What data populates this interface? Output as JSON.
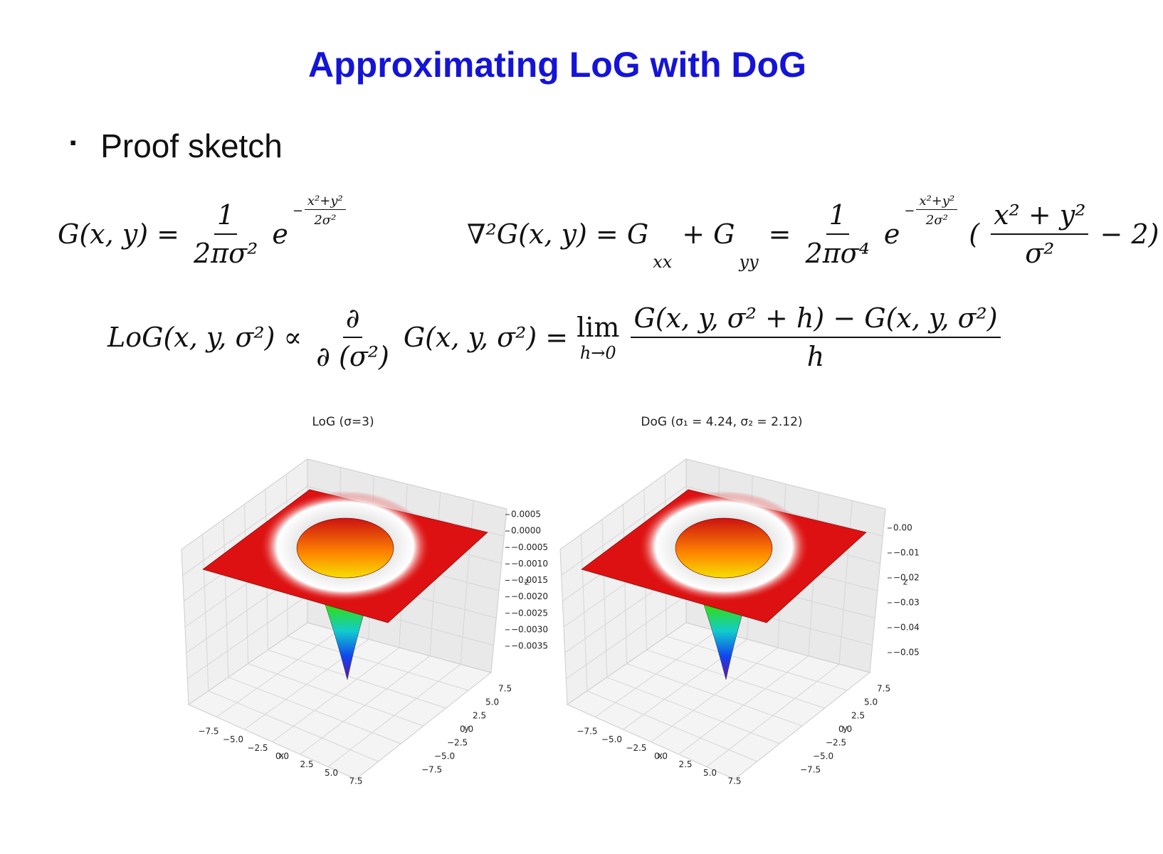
{
  "header": {
    "title": "Approximating LoG with DoG"
  },
  "bullet": {
    "marker": "▪",
    "text": "Proof sketch"
  },
  "formulas": [
    {
      "parts": [
        {
          "text": "G(x, y) ="
        },
        {
          "num": "1",
          "den": "2πσ²"
        },
        {
          "text": "e"
        },
        {
          "sup": "−",
          "num": "x²+y²",
          "den": "2σ²"
        }
      ]
    },
    {
      "parts": [
        {
          "text": "∇²G(x, y) = G"
        },
        {
          "sub": "xx"
        },
        {
          "text": "+ G"
        },
        {
          "sub": "yy"
        },
        {
          "text": "="
        },
        {
          "num": "1",
          "den": "2πσ⁴"
        },
        {
          "text": "e"
        },
        {
          "sup": "−",
          "num": "x²+y²",
          "den": "2σ²"
        },
        {
          "text": "("
        },
        {
          "num": "x² + y²",
          "den": "σ²"
        },
        {
          "text": "− 2)"
        }
      ]
    },
    {
      "parts": [
        {
          "text": "LoG(x, y, σ²) ∝"
        },
        {
          "num": "∂",
          "den": "∂ (σ²)"
        },
        {
          "text": "G(x, y, σ²) ="
        },
        {
          "text": "lim",
          "under": "h→0"
        },
        {
          "num": "G(x, y, σ² + h) − G(x, y, σ²)",
          "den": "h"
        }
      ]
    }
  ],
  "plots": [
    {
      "title": "LoG (σ=3)",
      "xlabel": "x",
      "ylabel": "y",
      "zlabel": "z",
      "zticks": [
        "0.0005",
        "0.0000",
        "−0.0005",
        "−0.0010",
        "−0.0015",
        "−0.0020",
        "−0.0025",
        "−0.0030",
        "−0.0035"
      ],
      "xticks": [
        "−7.5",
        "−5.0",
        "−2.5",
        "0.0",
        "2.5",
        "5.0",
        "7.5"
      ],
      "yticks": [
        "7.5",
        "5.0",
        "2.5",
        "0.0",
        "−2.5",
        "−5.0",
        "−7.5"
      ]
    },
    {
      "title": "DoG (σ₁ = 4.24, σ₂ = 2.12)",
      "xlabel": "x",
      "ylabel": "y",
      "zlabel": "z",
      "zticks": [
        "0.00",
        "−0.01",
        "−0.02",
        "−0.03",
        "−0.04",
        "−0.05"
      ],
      "xticks": [
        "−7.5",
        "−5.0",
        "−2.5",
        "0.0",
        "2.5",
        "5.0",
        "7.5"
      ],
      "yticks": [
        "7.5",
        "5.0",
        "2.5",
        "0.0",
        "−2.5",
        "−5.0",
        "−7.5"
      ]
    }
  ]
}
